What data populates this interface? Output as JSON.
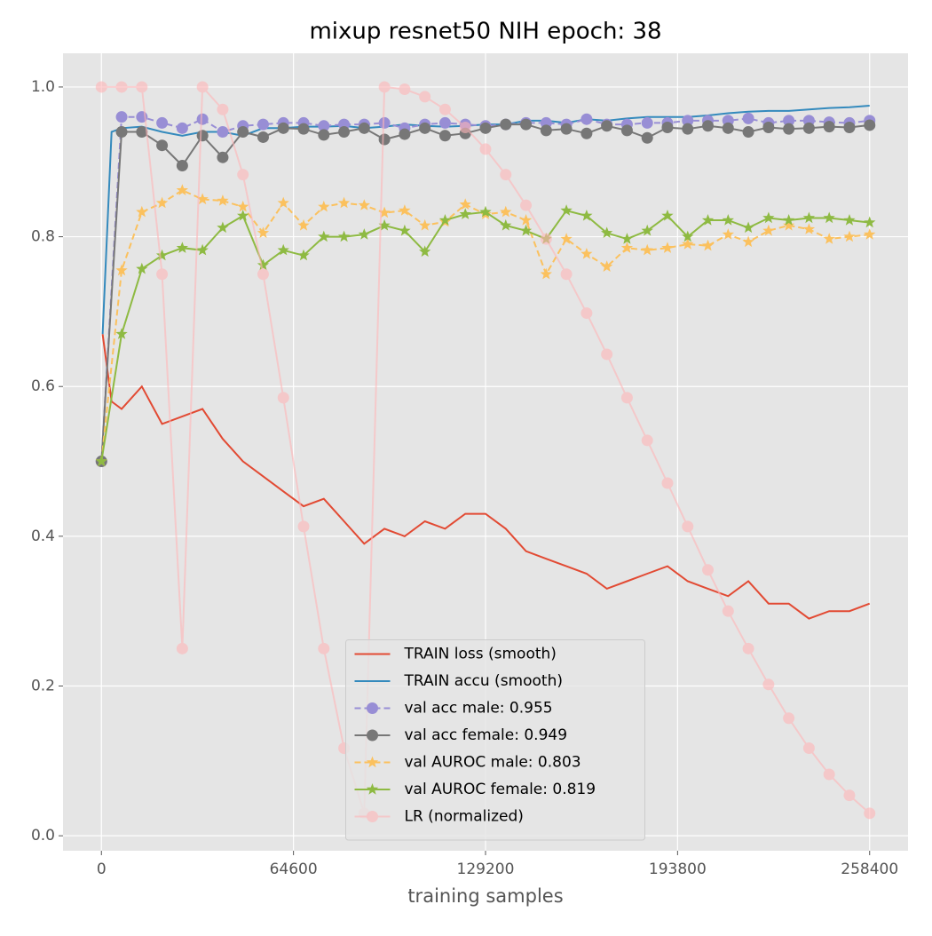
{
  "chart_data": {
    "type": "line",
    "title": "mixup resnet50 NIH  epoch: 38",
    "xlabel": "training samples",
    "xlim": [
      -12920,
      271320
    ],
    "ylim": [
      -0.02,
      1.045
    ],
    "xticks": [
      0,
      64600,
      129200,
      193800,
      258400
    ],
    "yticks": [
      {
        "value": 0,
        "label": "0.0"
      },
      {
        "value": 0.2,
        "label": "0.2"
      },
      {
        "value": 0.4,
        "label": "0.4"
      },
      {
        "value": 0.6,
        "label": "0.6"
      },
      {
        "value": 0.8,
        "label": "0.8"
      },
      {
        "value": 1,
        "label": "1.0"
      }
    ],
    "grid": true,
    "legend": "lower center",
    "x": [
      0,
      6800,
      13600,
      20400,
      27200,
      34000,
      40800,
      47600,
      54400,
      61200,
      68000,
      74800,
      81600,
      88400,
      95200,
      102000,
      108800,
      115600,
      122400,
      129200,
      136000,
      142800,
      149600,
      156400,
      163200,
      170000,
      176800,
      183600,
      190400,
      197200,
      204000,
      210800,
      217600,
      224400,
      231200,
      238000,
      244800,
      251600,
      258400
    ],
    "series": [
      {
        "name": "TRAIN loss (smooth)",
        "color": "#E24A33",
        "linestyle": "solid",
        "marker": "none",
        "x": [
          400,
          3400,
          6800,
          13600,
          20400,
          27200,
          34000,
          40800,
          47600,
          54400,
          61200,
          68000,
          74800,
          81600,
          88400,
          95200,
          102000,
          108800,
          115600,
          122400,
          129200,
          136000,
          142800,
          149600,
          156400,
          163200,
          170000,
          176800,
          183600,
          190400,
          197200,
          204000,
          210800,
          217600,
          224400,
          231200,
          238000,
          244800,
          251600,
          258400
        ],
        "values": [
          0.67,
          0.58,
          0.57,
          0.6,
          0.55,
          0.56,
          0.57,
          0.53,
          0.5,
          0.48,
          0.46,
          0.44,
          0.45,
          0.42,
          0.39,
          0.41,
          0.4,
          0.42,
          0.41,
          0.43,
          0.43,
          0.41,
          0.38,
          0.37,
          0.36,
          0.35,
          0.33,
          0.34,
          0.35,
          0.36,
          0.34,
          0.33,
          0.32,
          0.34,
          0.31,
          0.31,
          0.29,
          0.3,
          0.3,
          0.31
        ]
      },
      {
        "name": "TRAIN accu (smooth)",
        "color": "#348ABD",
        "linestyle": "solid",
        "marker": "none",
        "x": [
          400,
          3400,
          6800,
          13600,
          20400,
          27200,
          34000,
          40800,
          47600,
          54400,
          61200,
          68000,
          74800,
          81600,
          88400,
          95200,
          102000,
          108800,
          115600,
          122400,
          129200,
          136000,
          142800,
          149600,
          156400,
          163200,
          170000,
          176800,
          183600,
          190400,
          197200,
          204000,
          210800,
          217600,
          224400,
          231200,
          238000,
          244800,
          251600,
          258400
        ],
        "values": [
          0.67,
          0.94,
          0.945,
          0.947,
          0.94,
          0.935,
          0.94,
          0.94,
          0.935,
          0.945,
          0.945,
          0.947,
          0.947,
          0.948,
          0.945,
          0.947,
          0.95,
          0.948,
          0.947,
          0.948,
          0.95,
          0.95,
          0.955,
          0.955,
          0.952,
          0.957,
          0.955,
          0.958,
          0.96,
          0.96,
          0.96,
          0.962,
          0.965,
          0.967,
          0.968,
          0.968,
          0.97,
          0.972,
          0.973,
          0.975
        ]
      },
      {
        "name": "val acc male: 0.955",
        "color": "#988ED5",
        "linestyle": "dashed",
        "marker": "circle",
        "values": [
          0.5,
          0.96,
          0.96,
          0.952,
          0.945,
          0.957,
          0.94,
          0.948,
          0.95,
          0.952,
          0.952,
          0.948,
          0.95,
          0.95,
          0.952,
          0.945,
          0.95,
          0.952,
          0.95,
          0.948,
          0.95,
          0.952,
          0.952,
          0.95,
          0.957,
          0.95,
          0.95,
          0.952,
          0.952,
          0.955,
          0.955,
          0.955,
          0.958,
          0.952,
          0.955,
          0.955,
          0.953,
          0.952,
          0.955
        ]
      },
      {
        "name": "val acc female: 0.949",
        "color": "#777777",
        "linestyle": "solid",
        "marker": "circle",
        "values": [
          0.5,
          0.94,
          0.94,
          0.922,
          0.895,
          0.935,
          0.906,
          0.94,
          0.933,
          0.945,
          0.944,
          0.936,
          0.94,
          0.945,
          0.93,
          0.937,
          0.945,
          0.935,
          0.938,
          0.945,
          0.95,
          0.95,
          0.942,
          0.944,
          0.938,
          0.948,
          0.942,
          0.932,
          0.946,
          0.944,
          0.948,
          0.945,
          0.94,
          0.946,
          0.944,
          0.945,
          0.947,
          0.946,
          0.949
        ]
      },
      {
        "name": "val AUROC male: 0.803",
        "color": "#FBC15E",
        "linestyle": "dashed",
        "marker": "star",
        "values": [
          0.5,
          0.755,
          0.833,
          0.845,
          0.862,
          0.85,
          0.848,
          0.84,
          0.805,
          0.845,
          0.815,
          0.84,
          0.845,
          0.842,
          0.832,
          0.835,
          0.815,
          0.82,
          0.843,
          0.83,
          0.833,
          0.822,
          0.75,
          0.797,
          0.777,
          0.76,
          0.785,
          0.782,
          0.785,
          0.79,
          0.788,
          0.803,
          0.793,
          0.808,
          0.815,
          0.81,
          0.797,
          0.8,
          0.803
        ]
      },
      {
        "name": "val AUROC female: 0.819",
        "color": "#8EBA42",
        "linestyle": "solid",
        "marker": "star",
        "values": [
          0.5,
          0.67,
          0.757,
          0.775,
          0.785,
          0.782,
          0.812,
          0.828,
          0.762,
          0.782,
          0.775,
          0.8,
          0.8,
          0.803,
          0.815,
          0.808,
          0.78,
          0.822,
          0.83,
          0.833,
          0.815,
          0.808,
          0.797,
          0.835,
          0.828,
          0.805,
          0.797,
          0.808,
          0.828,
          0.8,
          0.822,
          0.822,
          0.812,
          0.825,
          0.822,
          0.825,
          0.825,
          0.822,
          0.819
        ]
      },
      {
        "name": "LR (normalized)",
        "color": "#FFB5B8",
        "linestyle": "solid",
        "marker": "circle",
        "alpha": 0.6,
        "values": [
          1.0,
          1.0,
          1.0,
          0.75,
          0.25,
          1.0,
          0.97,
          0.883,
          0.75,
          0.585,
          0.413,
          0.25,
          0.117,
          0.03,
          1.0,
          0.997,
          0.987,
          0.97,
          0.946,
          0.917,
          0.883,
          0.842,
          0.797,
          0.75,
          0.698,
          0.643,
          0.585,
          0.528,
          0.471,
          0.413,
          0.355,
          0.3,
          0.25,
          0.202,
          0.157,
          0.117,
          0.082,
          0.054,
          0.03
        ]
      }
    ]
  }
}
